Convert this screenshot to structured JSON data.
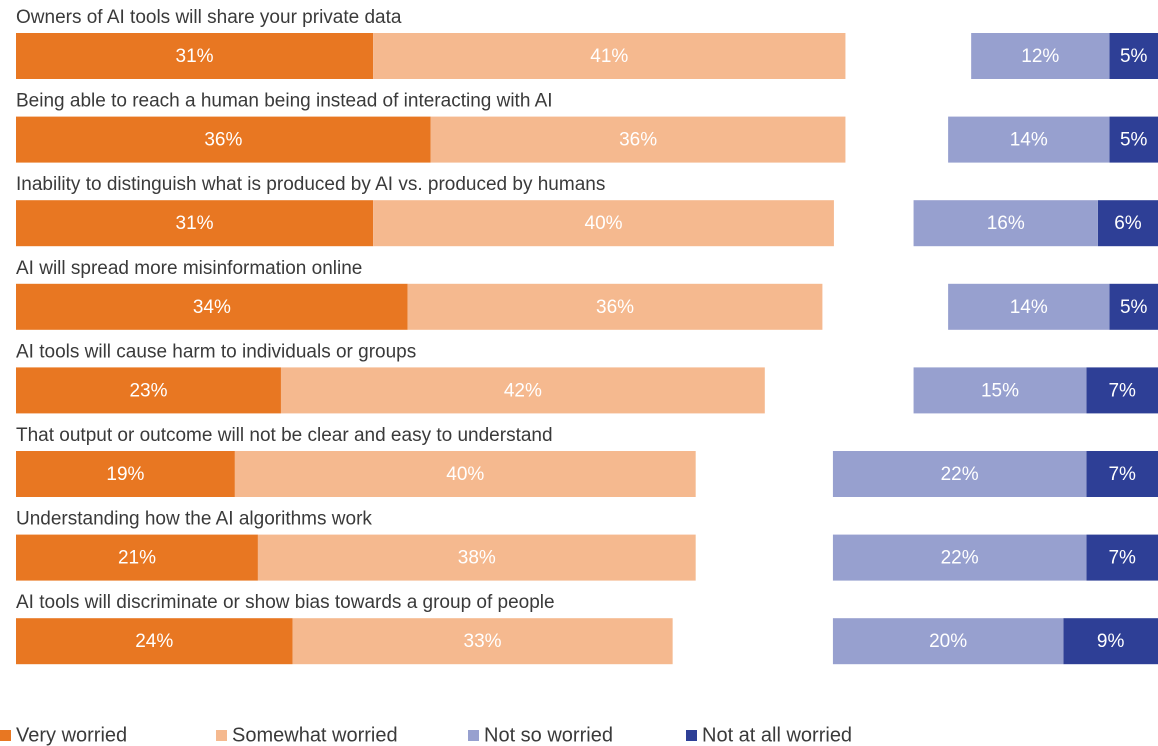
{
  "chart_data": {
    "type": "diverging_bar",
    "categories": [
      "Owners of AI tools will share your private data",
      "Being able to reach a human being instead of interacting with AI",
      "Inability to distinguish what is produced by AI vs. produced by humans",
      "AI will spread more misinformation online",
      "AI tools will cause harm to individuals or groups",
      "That output or outcome will not be clear and easy to understand",
      "Understanding how the AI algorithms work",
      "AI tools will discriminate or show bias towards a group of people"
    ],
    "series": [
      {
        "name": "Very worried",
        "color": "#e87722",
        "side": "left",
        "values": [
          31,
          36,
          31,
          34,
          23,
          19,
          21,
          24
        ],
        "value_labels": [
          "31%",
          "36%",
          "31%",
          "34%",
          "23%",
          "19%",
          "21%",
          "24%"
        ]
      },
      {
        "name": "Somewhat worried",
        "color": "#f5b98f",
        "side": "left",
        "values": [
          41,
          36,
          40,
          36,
          42,
          40,
          38,
          33
        ],
        "value_labels": [
          "41%",
          "36%",
          "40%",
          "36%",
          "42%",
          "40%",
          "38%",
          "33%"
        ]
      },
      {
        "name": "Not so worried",
        "color": "#97a0cf",
        "side": "right",
        "values": [
          12,
          14,
          16,
          14,
          15,
          22,
          22,
          20
        ],
        "value_labels": [
          "12%",
          "14%",
          "16%",
          "14%",
          "15%",
          "22%",
          "22%",
          "20%"
        ]
      },
      {
        "name": "Not at all worried",
        "color": "#2e3f96",
        "side": "right",
        "values": [
          5,
          5,
          6,
          5,
          7,
          7,
          7,
          9
        ],
        "value_labels": [
          "5%",
          "5%",
          "6%",
          "5%",
          "7%",
          "7%",
          "7%",
          "9%"
        ]
      }
    ]
  }
}
